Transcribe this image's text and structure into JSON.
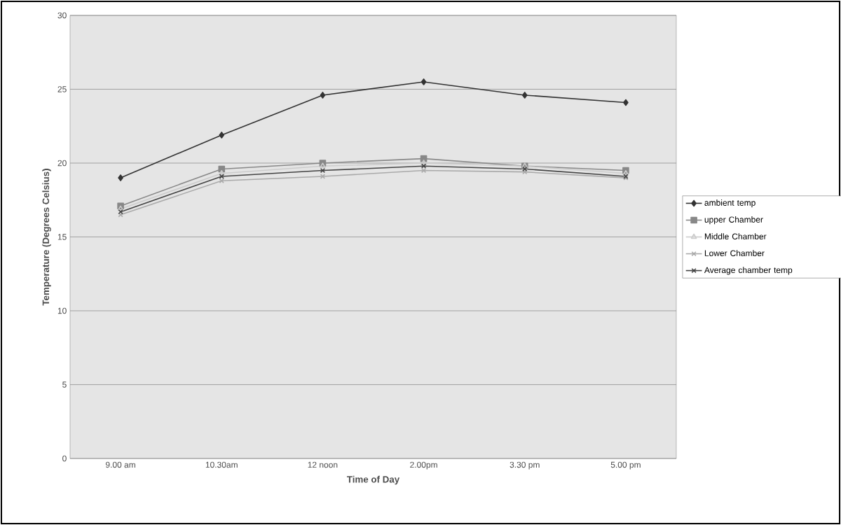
{
  "chart_data": {
    "type": "line",
    "xlabel": "Time of Day",
    "ylabel": "Temperature (Degrees Celsius)",
    "categories": [
      "9.00 am",
      "10.30am",
      "12 noon",
      "2.00pm",
      "3.30 pm",
      "5.00 pm"
    ],
    "series": [
      {
        "name": "ambient temp",
        "color": "#333333",
        "marker": "diamond",
        "values": [
          19.0,
          21.9,
          24.6,
          25.5,
          24.6,
          24.1
        ]
      },
      {
        "name": "upper Chamber",
        "color": "#888888",
        "marker": "square",
        "values": [
          17.1,
          19.6,
          20.0,
          20.3,
          19.8,
          19.5
        ]
      },
      {
        "name": "Middle Chamber",
        "color": "#cccccc",
        "marker": "triangle",
        "values": [
          16.9,
          19.3,
          19.8,
          20.0,
          19.8,
          19.3
        ]
      },
      {
        "name": "Lower Chamber",
        "color": "#aaaaaa",
        "marker": "cross",
        "values": [
          16.5,
          18.8,
          19.1,
          19.5,
          19.4,
          19.0
        ]
      },
      {
        "name": "Average chamber temp",
        "color": "#444444",
        "marker": "cross",
        "values": [
          16.7,
          19.1,
          19.5,
          19.8,
          19.6,
          19.1
        ]
      }
    ],
    "ylim": [
      0,
      30
    ],
    "yticks": [
      0,
      5,
      10,
      15,
      20,
      25,
      30
    ],
    "grid": "y",
    "legend": "right"
  }
}
